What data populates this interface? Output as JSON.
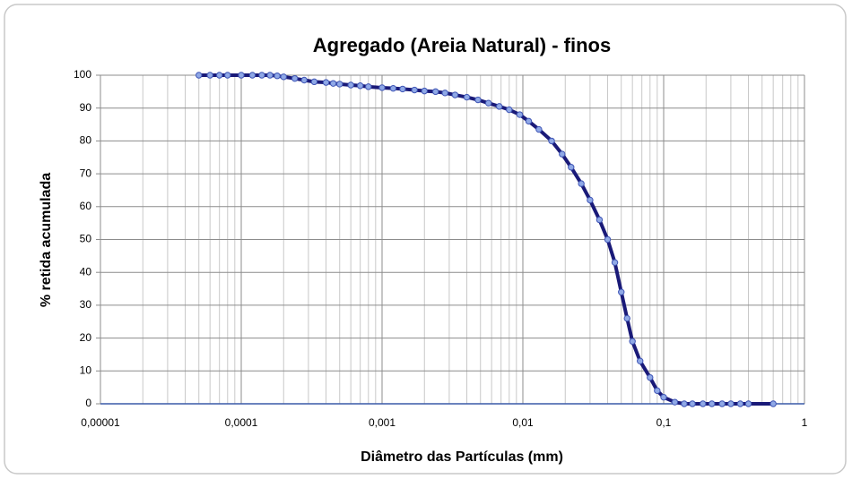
{
  "chart_data": {
    "type": "line",
    "title": "Agregado (Areia Natural)  -  finos",
    "x_label": "Diâmetro das Partículas (mm)",
    "y_label": "% retida acumulada",
    "xscale": "log",
    "xlim": [
      1e-05,
      1
    ],
    "ylim": [
      0,
      100
    ],
    "xticks": [
      {
        "value": 1e-05,
        "label": "0,00001"
      },
      {
        "value": 0.0001,
        "label": "0,0001"
      },
      {
        "value": 0.001,
        "label": "0,001"
      },
      {
        "value": 0.01,
        "label": "0,01"
      },
      {
        "value": 0.1,
        "label": "0,1"
      },
      1
    ],
    "yticks": [
      0,
      10,
      20,
      30,
      40,
      50,
      60,
      70,
      80,
      90,
      100
    ],
    "grid": true,
    "minor_grid": true,
    "series": [
      {
        "color": "#1a1a78",
        "marker_color": "#8fa8e6",
        "x": [
          5e-05,
          6e-05,
          7e-05,
          8e-05,
          0.0001,
          0.00012,
          0.00014,
          0.00016,
          0.00018,
          0.0002,
          0.00024,
          0.00028,
          0.00033,
          0.0004,
          0.00045,
          0.0005,
          0.0006,
          0.0007,
          0.0008,
          0.001,
          0.0012,
          0.0014,
          0.0017,
          0.002,
          0.0024,
          0.0028,
          0.0033,
          0.004,
          0.0048,
          0.0057,
          0.0068,
          0.008,
          0.0095,
          0.011,
          0.013,
          0.016,
          0.019,
          0.022,
          0.026,
          0.03,
          0.035,
          0.04,
          0.045,
          0.05,
          0.055,
          0.06,
          0.068,
          0.08,
          0.09,
          0.1,
          0.12,
          0.14,
          0.16,
          0.19,
          0.22,
          0.26,
          0.3,
          0.35,
          0.4,
          0.6
        ],
        "values": [
          100,
          100,
          100,
          100,
          100,
          100,
          100,
          100,
          99.8,
          99.5,
          99,
          98.5,
          98,
          97.8,
          97.5,
          97.3,
          97,
          96.8,
          96.5,
          96.2,
          96,
          95.8,
          95.5,
          95.2,
          95,
          94.6,
          94,
          93.3,
          92.5,
          91.5,
          90.5,
          89.5,
          88,
          86,
          83.5,
          80,
          76,
          72,
          67,
          62,
          56,
          50,
          43,
          34,
          26,
          19,
          13,
          8,
          4,
          2,
          0.5,
          0,
          0,
          0,
          0,
          0,
          0,
          0,
          0,
          0
        ]
      }
    ]
  }
}
